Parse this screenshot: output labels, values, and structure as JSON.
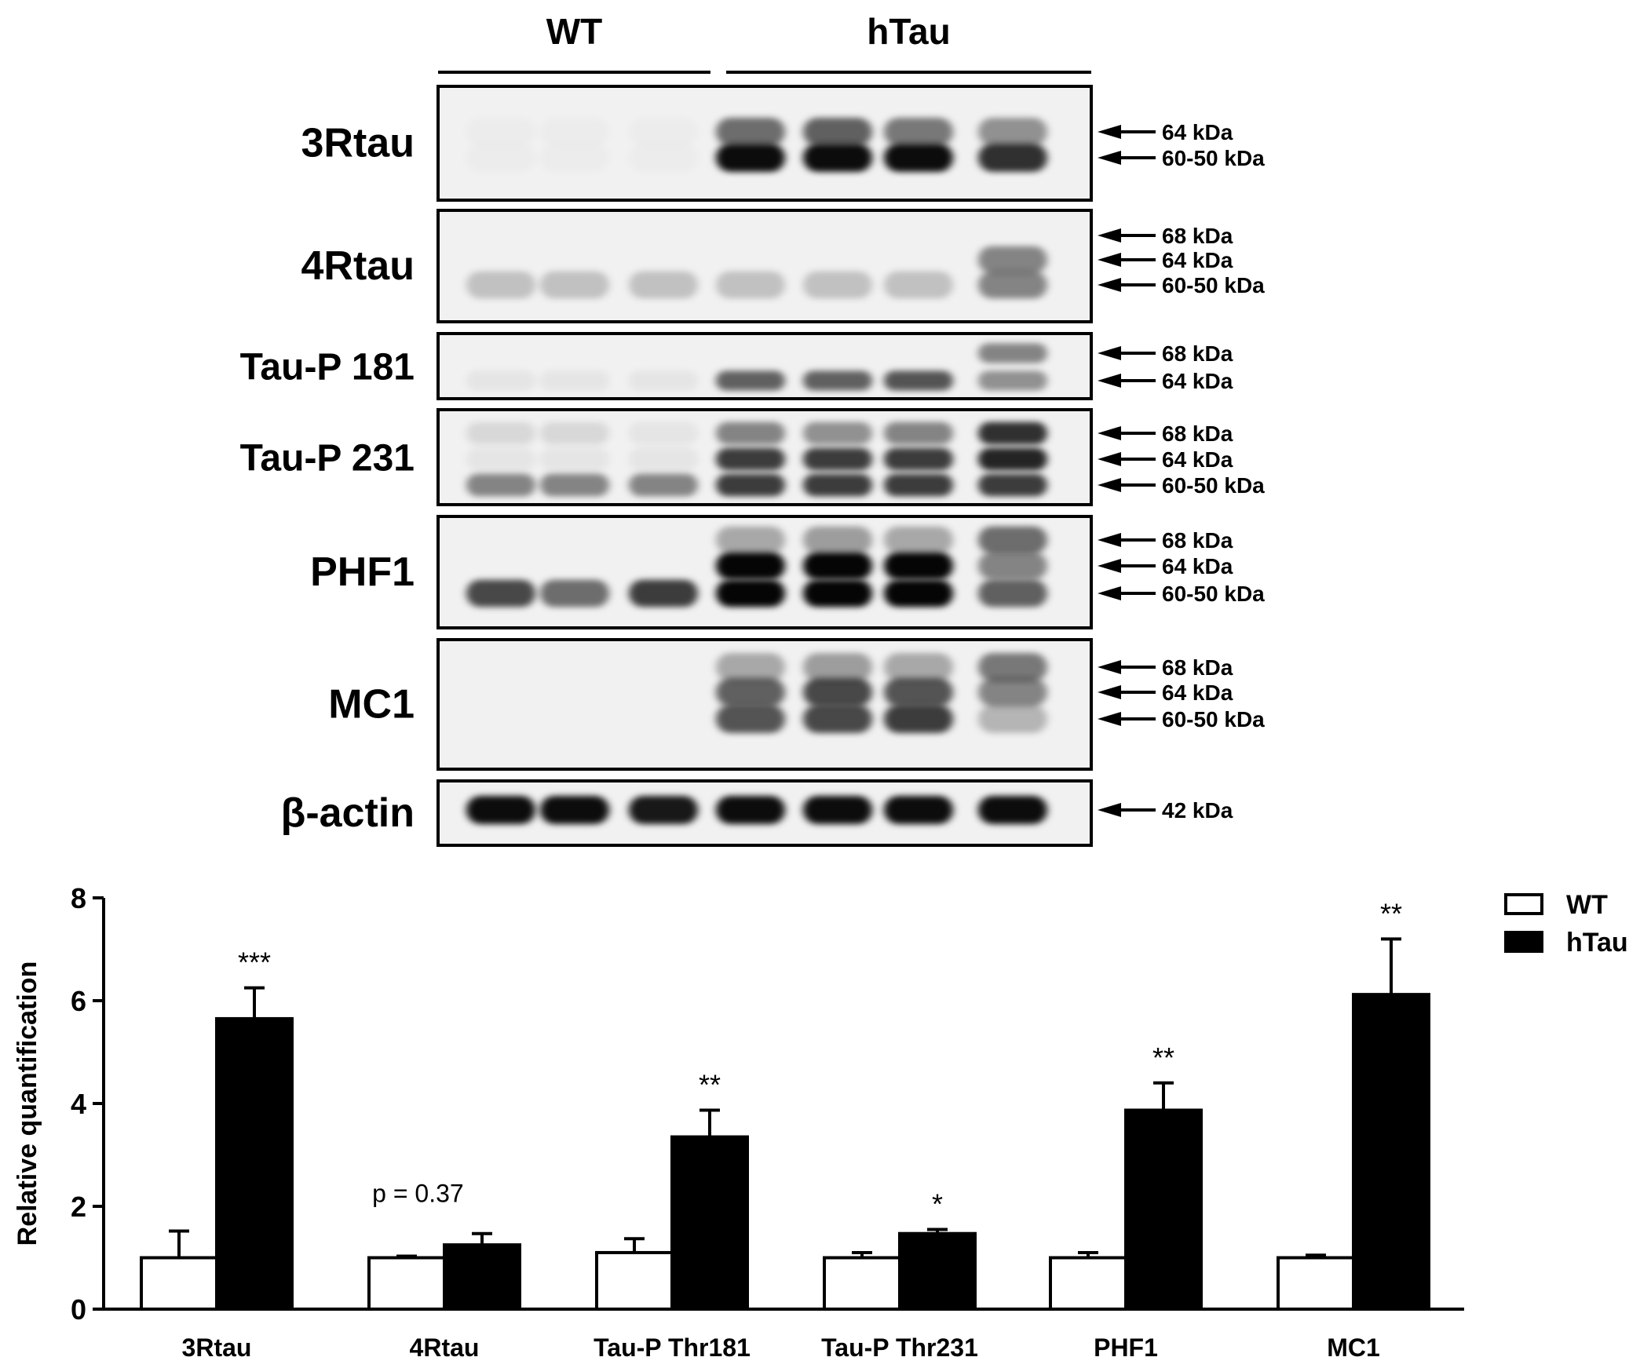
{
  "blot": {
    "groups": [
      {
        "label": "WT",
        "lanes": 3
      },
      {
        "label": "hTau",
        "lanes": 4
      }
    ],
    "panels": [
      {
        "label": "3Rtau",
        "markers": [
          "64 kDa",
          "60-50 kDa"
        ],
        "bands": [
          [
            0,
            0.02,
            0.02,
            0.02,
            0.55,
            0.6,
            0.5,
            0.4
          ],
          [
            1,
            0.02,
            0.02,
            0.02,
            0.95,
            0.95,
            0.95,
            0.8
          ]
        ]
      },
      {
        "label": "4Rtau",
        "markers": [
          "68 kDa",
          "64 kDa",
          "60-50 kDa"
        ],
        "bands": [
          [
            1,
            0.0,
            0.0,
            0.0,
            0.0,
            0.0,
            0.0,
            0.45
          ],
          [
            2,
            0.2,
            0.2,
            0.2,
            0.2,
            0.2,
            0.2,
            0.45
          ]
        ]
      },
      {
        "label": "Tau-P 181",
        "markers": [
          "68 kDa",
          "64 kDa"
        ],
        "bands": [
          [
            0,
            0.0,
            0.0,
            0.0,
            0.0,
            0.0,
            0.0,
            0.45
          ],
          [
            1,
            0.05,
            0.05,
            0.05,
            0.6,
            0.6,
            0.65,
            0.4
          ]
        ]
      },
      {
        "label": "Tau-P 231",
        "markers": [
          "68 kDa",
          "64 kDa",
          "60-50 kDa"
        ],
        "bands": [
          [
            0,
            0.1,
            0.1,
            0.05,
            0.45,
            0.4,
            0.45,
            0.8
          ],
          [
            1,
            0.05,
            0.05,
            0.05,
            0.75,
            0.75,
            0.75,
            0.85
          ],
          [
            2,
            0.45,
            0.45,
            0.45,
            0.75,
            0.75,
            0.75,
            0.75
          ]
        ]
      },
      {
        "label": "PHF1",
        "markers": [
          "68 kDa",
          "64 kDa",
          "60-50 kDa"
        ],
        "bands": [
          [
            0,
            0.0,
            0.0,
            0.0,
            0.3,
            0.35,
            0.3,
            0.55
          ],
          [
            1,
            0.0,
            0.0,
            0.0,
            0.98,
            0.98,
            0.98,
            0.45
          ],
          [
            2,
            0.7,
            0.55,
            0.75,
            0.98,
            0.98,
            0.98,
            0.6
          ]
        ]
      },
      {
        "label": "MC1",
        "markers": [
          "68 kDa",
          "64 kDa",
          "60-50 kDa"
        ],
        "bands": [
          [
            0,
            0.0,
            0.0,
            0.0,
            0.3,
            0.35,
            0.3,
            0.5
          ],
          [
            1,
            0.0,
            0.0,
            0.0,
            0.6,
            0.7,
            0.65,
            0.45
          ],
          [
            2,
            0.0,
            0.0,
            0.0,
            0.65,
            0.7,
            0.75,
            0.25
          ]
        ]
      },
      {
        "label": "β-actin",
        "markers": [
          "42 kDa"
        ],
        "bands": [
          [
            0,
            0.95,
            0.95,
            0.9,
            0.95,
            0.95,
            0.95,
            0.95
          ]
        ]
      }
    ]
  },
  "chart_data": {
    "type": "bar",
    "ylabel": "Relative quantification",
    "xlabel": "",
    "ylim": [
      0,
      8
    ],
    "yticks": [
      0,
      2,
      4,
      6,
      8
    ],
    "categories": [
      "3Rtau",
      "4Rtau",
      "Tau-P Thr181",
      "Tau-P Thr231",
      "PHF1",
      "MC1"
    ],
    "series": [
      {
        "name": "WT",
        "fill": "#ffffff",
        "values": [
          1.0,
          1.0,
          1.1,
          1.0,
          1.0,
          1.0
        ],
        "errors": [
          0.52,
          0.03,
          0.27,
          0.1,
          0.1,
          0.05
        ]
      },
      {
        "name": "hTau",
        "fill": "#000000",
        "values": [
          5.65,
          1.25,
          3.35,
          1.47,
          3.87,
          6.12
        ],
        "errors": [
          0.6,
          0.22,
          0.52,
          0.08,
          0.53,
          1.08
        ]
      }
    ],
    "annotations": [
      "***",
      "p = 0.37",
      "**",
      "*",
      "**",
      "**"
    ],
    "legend": "top-right"
  }
}
